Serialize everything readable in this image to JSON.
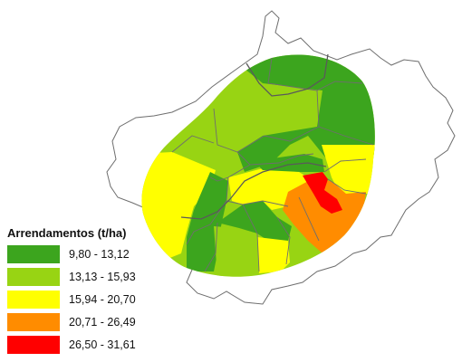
{
  "legend": {
    "title": "Arrendamentos (t/ha)",
    "items": [
      {
        "label": "9,80 - 13,12",
        "color": "#3ca51e"
      },
      {
        "label": "13,13 - 15,93",
        "color": "#98d413"
      },
      {
        "label": "15,94 - 20,70",
        "color": "#ffff00"
      },
      {
        "label": "20,71 - 26,49",
        "color": "#ff8c00"
      },
      {
        "label": "26,50 - 31,61",
        "color": "#ff0000"
      }
    ]
  },
  "colors": {
    "boundary": "#6e6e6e",
    "region_boundary": "#8a8a8a"
  }
}
